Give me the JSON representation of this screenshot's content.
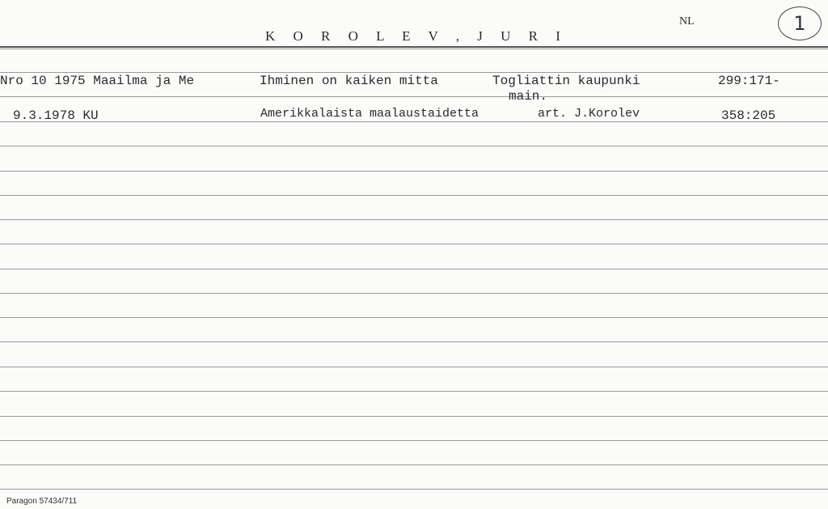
{
  "card": {
    "name": "K O R O L E V , J U R I",
    "code": "NL",
    "card_number": "1",
    "footer": "Paragon 57434/711"
  },
  "entries": [
    {
      "source": "Nro 10 1975 Maailma ja Me",
      "title": "Ihminen on kaiken mitta",
      "note": "Togliattin kaupunki",
      "note_line2": "main.",
      "ref": "299:171-"
    },
    {
      "source": "9.3.1978  KU",
      "title": "Amerikkalaista maalaustaidetta",
      "note": "art. J.Korolev",
      "note_line2": "",
      "ref": "358:205"
    }
  ]
}
